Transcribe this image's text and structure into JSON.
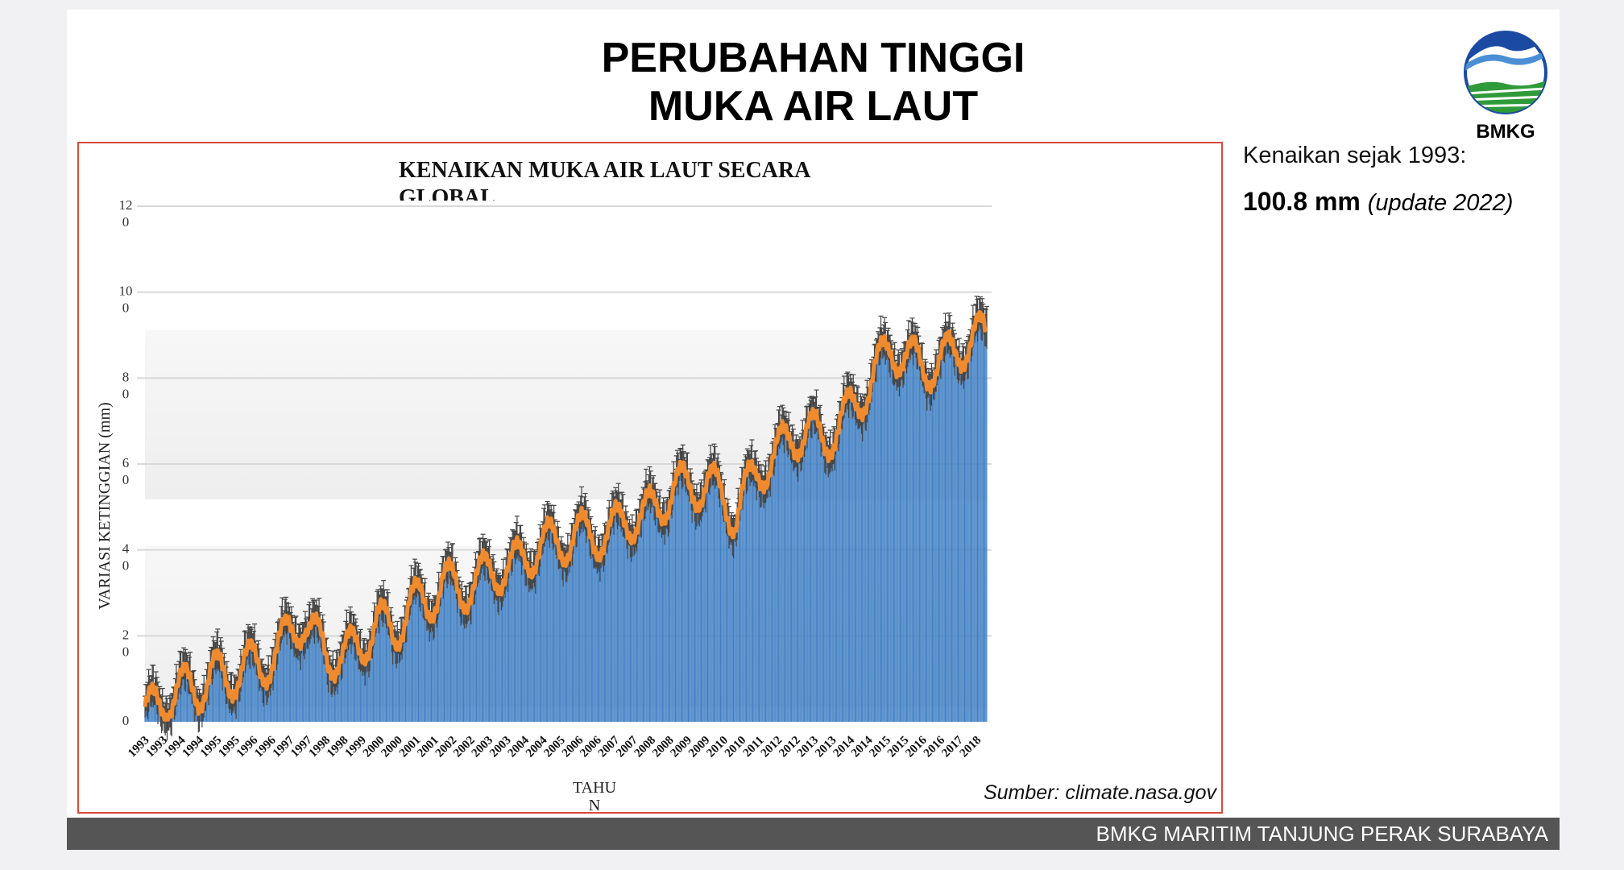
{
  "slide": {
    "title_line1": "PERUBAHAN TINGGI",
    "title_line2": "MUKA AIR LAUT",
    "logo_text": "BMKG",
    "note_label": "Kenaikan sejak 1993:",
    "note_value": "100.8 mm",
    "note_update": "(update 2022)",
    "footer": "BMKG MARITIM TANJUNG PERAK SURABAYA",
    "source": "Sumber: climate.nasa.gov"
  },
  "colors": {
    "bar": "#3f7fc4",
    "line": "#ef8a2e",
    "error": "#444444",
    "frame": "#d94a3a",
    "footer": "#555555"
  },
  "chart_data": {
    "type": "bar",
    "title": "KENAIKAN MUKA AIR LAUT SECARA GLOBAL",
    "title_line1": "KENAIKAN MUKA AIR LAUT SECARA",
    "title_line2": "GLOBAL",
    "ylabel": "VARIASI KETINGGIAN (mm)",
    "xlabel_line1": "TAHU",
    "xlabel_line2": "N",
    "ylim": [
      0,
      120
    ],
    "yticks": [
      {
        "top": "12",
        "bottom": "0",
        "value": 120
      },
      {
        "top": "10",
        "bottom": "0",
        "value": 100
      },
      {
        "top": "8",
        "bottom": "0",
        "value": 80
      },
      {
        "top": "6",
        "bottom": "0",
        "value": 60
      },
      {
        "top": "4",
        "bottom": "0",
        "value": 40
      },
      {
        "top": "2",
        "bottom": "0",
        "value": 20
      },
      {
        "top": "0",
        "bottom": "",
        "value": 0
      }
    ],
    "grid": true,
    "xtick_labels": [
      "1993",
      "1993",
      "1994",
      "1994",
      "1995",
      "1995",
      "1996",
      "1996",
      "1997",
      "1997",
      "1998",
      "1998",
      "1999",
      "2000",
      "2000",
      "2001",
      "2001",
      "2002",
      "2002",
      "2003",
      "2003",
      "2004",
      "2004",
      "2005",
      "2006",
      "2006",
      "2007",
      "2007",
      "2008",
      "2008",
      "2009",
      "2009",
      "2010",
      "2010",
      "2011",
      "2012",
      "2012",
      "2013",
      "2013",
      "2014",
      "2014",
      "2015",
      "2015",
      "2016",
      "2016",
      "2017",
      "2018"
    ],
    "x_range": [
      1993.0,
      2018.4
    ],
    "trend": {
      "start_value": 4,
      "rate_mm_per_year": 3.2
    },
    "samples_per_year": 36,
    "seasonal_amplitude": 5,
    "keypoints": [
      {
        "x": 1993.0,
        "y": 2
      },
      {
        "x": 1993.5,
        "y": 4
      },
      {
        "x": 1994.0,
        "y": 8
      },
      {
        "x": 1994.6,
        "y": 7
      },
      {
        "x": 1995.0,
        "y": 12
      },
      {
        "x": 1995.5,
        "y": 9
      },
      {
        "x": 1996.0,
        "y": 14
      },
      {
        "x": 1996.5,
        "y": 12
      },
      {
        "x": 1997.0,
        "y": 17
      },
      {
        "x": 1997.8,
        "y": 24
      },
      {
        "x": 1998.5,
        "y": 15
      },
      {
        "x": 1999.0,
        "y": 16
      },
      {
        "x": 1999.5,
        "y": 17
      },
      {
        "x": 2000.0,
        "y": 24
      },
      {
        "x": 2000.5,
        "y": 20
      },
      {
        "x": 2001.0,
        "y": 28
      },
      {
        "x": 2001.5,
        "y": 27
      },
      {
        "x": 2002.0,
        "y": 33
      },
      {
        "x": 2002.5,
        "y": 30
      },
      {
        "x": 2003.0,
        "y": 33
      },
      {
        "x": 2003.5,
        "y": 35
      },
      {
        "x": 2004.0,
        "y": 36
      },
      {
        "x": 2004.5,
        "y": 38
      },
      {
        "x": 2005.0,
        "y": 42
      },
      {
        "x": 2005.5,
        "y": 41
      },
      {
        "x": 2006.0,
        "y": 44
      },
      {
        "x": 2006.5,
        "y": 43
      },
      {
        "x": 2007.0,
        "y": 44
      },
      {
        "x": 2007.5,
        "y": 47
      },
      {
        "x": 2008.0,
        "y": 48
      },
      {
        "x": 2008.5,
        "y": 50
      },
      {
        "x": 2009.0,
        "y": 55
      },
      {
        "x": 2009.5,
        "y": 54
      },
      {
        "x": 2010.0,
        "y": 56
      },
      {
        "x": 2010.4,
        "y": 52
      },
      {
        "x": 2010.8,
        "y": 48
      },
      {
        "x": 2011.0,
        "y": 52
      },
      {
        "x": 2011.5,
        "y": 58
      },
      {
        "x": 2012.0,
        "y": 62
      },
      {
        "x": 2012.5,
        "y": 66
      },
      {
        "x": 2013.0,
        "y": 68
      },
      {
        "x": 2013.5,
        "y": 65
      },
      {
        "x": 2014.0,
        "y": 70
      },
      {
        "x": 2014.5,
        "y": 74
      },
      {
        "x": 2015.0,
        "y": 81
      },
      {
        "x": 2015.5,
        "y": 87
      },
      {
        "x": 2016.0,
        "y": 85
      },
      {
        "x": 2016.5,
        "y": 82
      },
      {
        "x": 2017.0,
        "y": 84
      },
      {
        "x": 2017.5,
        "y": 86
      },
      {
        "x": 2018.0,
        "y": 90
      },
      {
        "x": 2018.4,
        "y": 89
      }
    ]
  }
}
